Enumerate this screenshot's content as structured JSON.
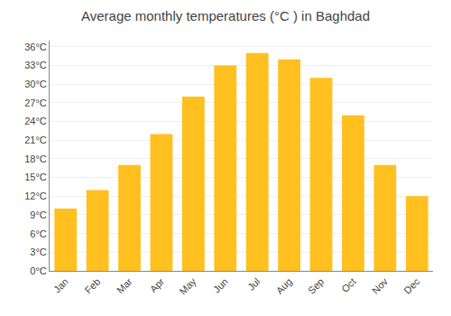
{
  "chart_data": {
    "type": "bar",
    "title": "Average monthly temperatures (°C ) in Baghdad",
    "categories": [
      "Jan",
      "Feb",
      "Mar",
      "Apr",
      "May",
      "Jun",
      "Jul",
      "Aug",
      "Sep",
      "Oct",
      "Nov",
      "Dec"
    ],
    "values": [
      10,
      13,
      17,
      22,
      28,
      33,
      35,
      34,
      31,
      25,
      17,
      12
    ],
    "color": "#FFC020",
    "ylim": [
      0,
      37
    ],
    "yticks": [
      {
        "value": 0,
        "label": "0°C"
      },
      {
        "value": 3,
        "label": "3°C"
      },
      {
        "value": 6,
        "label": "6°C"
      },
      {
        "value": 9,
        "label": "9°C"
      },
      {
        "value": 12,
        "label": "12°C"
      },
      {
        "value": 15,
        "label": "15°C"
      },
      {
        "value": 18,
        "label": "18°C"
      },
      {
        "value": 21,
        "label": "21°C"
      },
      {
        "value": 24,
        "label": "24°C"
      },
      {
        "value": 27,
        "label": "27°C"
      },
      {
        "value": 30,
        "label": "30°C"
      },
      {
        "value": 33,
        "label": "33°C"
      },
      {
        "value": 36,
        "label": "36°C"
      }
    ],
    "grid": true
  }
}
